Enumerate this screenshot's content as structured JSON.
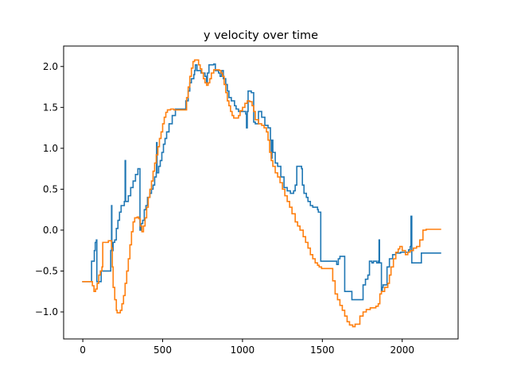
{
  "chart_data": {
    "type": "line",
    "title": "y velocity over time",
    "xlabel": "",
    "ylabel": "",
    "xlim": [
      -120,
      2350
    ],
    "ylim": [
      -1.33,
      2.25
    ],
    "xticks": [
      0,
      500,
      1000,
      1500,
      2000
    ],
    "yticks": [
      -1.0,
      -0.5,
      0.0,
      0.5,
      1.0,
      1.5,
      2.0
    ],
    "xtick_labels": [
      "0",
      "500",
      "1000",
      "1500",
      "2000"
    ],
    "ytick_labels": [
      "−1.0",
      "−0.5",
      "0.0",
      "0.5",
      "1.0",
      "1.5",
      "2.0"
    ],
    "grid": false,
    "legend": "none",
    "step": true,
    "series": [
      {
        "color": "#1f77b4",
        "points": [
          [
            0,
            -0.63
          ],
          [
            40,
            -0.63
          ],
          [
            50,
            -0.63
          ],
          [
            55,
            -0.38
          ],
          [
            70,
            -0.38
          ],
          [
            72,
            -0.25
          ],
          [
            78,
            -0.15
          ],
          [
            85,
            -0.12
          ],
          [
            88,
            -0.63
          ],
          [
            110,
            -0.63
          ],
          [
            115,
            -0.5
          ],
          [
            170,
            -0.5
          ],
          [
            175,
            -0.25
          ],
          [
            180,
            0.3
          ],
          [
            182,
            -0.25
          ],
          [
            190,
            -0.15
          ],
          [
            200,
            -0.12
          ],
          [
            210,
            0.02
          ],
          [
            220,
            0.12
          ],
          [
            230,
            0.22
          ],
          [
            240,
            0.3
          ],
          [
            260,
            0.35
          ],
          [
            265,
            0.85
          ],
          [
            268,
            0.35
          ],
          [
            285,
            0.42
          ],
          [
            300,
            0.52
          ],
          [
            315,
            0.6
          ],
          [
            330,
            0.68
          ],
          [
            345,
            0.75
          ],
          [
            355,
            0.75
          ],
          [
            358,
            0.0
          ],
          [
            365,
            0.08
          ],
          [
            375,
            0.12
          ],
          [
            385,
            0.25
          ],
          [
            395,
            0.3
          ],
          [
            405,
            0.4
          ],
          [
            420,
            0.45
          ],
          [
            430,
            0.5
          ],
          [
            440,
            0.55
          ],
          [
            450,
            0.65
          ],
          [
            460,
            0.7
          ],
          [
            462,
            1.07
          ],
          [
            465,
            0.7
          ],
          [
            475,
            0.78
          ],
          [
            485,
            0.85
          ],
          [
            495,
            0.95
          ],
          [
            505,
            1.05
          ],
          [
            515,
            1.12
          ],
          [
            525,
            1.2
          ],
          [
            540,
            1.3
          ],
          [
            560,
            1.4
          ],
          [
            580,
            1.48
          ],
          [
            640,
            1.48
          ],
          [
            645,
            1.58
          ],
          [
            660,
            1.7
          ],
          [
            670,
            1.8
          ],
          [
            680,
            1.85
          ],
          [
            695,
            1.9
          ],
          [
            700,
            1.95
          ],
          [
            705,
            2.02
          ],
          [
            715,
            1.95
          ],
          [
            740,
            1.92
          ],
          [
            765,
            1.88
          ],
          [
            775,
            1.8
          ],
          [
            780,
            1.92
          ],
          [
            790,
            2.02
          ],
          [
            820,
            2.03
          ],
          [
            830,
            1.95
          ],
          [
            850,
            1.92
          ],
          [
            860,
            1.88
          ],
          [
            870,
            1.95
          ],
          [
            880,
            1.85
          ],
          [
            895,
            1.78
          ],
          [
            905,
            1.7
          ],
          [
            915,
            1.62
          ],
          [
            930,
            1.58
          ],
          [
            950,
            1.52
          ],
          [
            960,
            1.48
          ],
          [
            975,
            1.45
          ],
          [
            1005,
            1.45
          ],
          [
            1020,
            1.42
          ],
          [
            1025,
            1.25
          ],
          [
            1030,
            1.45
          ],
          [
            1035,
            1.7
          ],
          [
            1055,
            1.68
          ],
          [
            1070,
            1.32
          ],
          [
            1080,
            1.3
          ],
          [
            1100,
            1.45
          ],
          [
            1120,
            1.38
          ],
          [
            1140,
            1.28
          ],
          [
            1160,
            1.25
          ],
          [
            1175,
            1.1
          ],
          [
            1180,
            0.88
          ],
          [
            1185,
            1.1
          ],
          [
            1190,
            0.95
          ],
          [
            1205,
            0.82
          ],
          [
            1220,
            0.78
          ],
          [
            1240,
            0.65
          ],
          [
            1260,
            0.52
          ],
          [
            1280,
            0.48
          ],
          [
            1300,
            0.45
          ],
          [
            1320,
            0.48
          ],
          [
            1330,
            0.55
          ],
          [
            1340,
            0.78
          ],
          [
            1370,
            0.75
          ],
          [
            1375,
            0.55
          ],
          [
            1385,
            0.45
          ],
          [
            1400,
            0.4
          ],
          [
            1410,
            0.35
          ],
          [
            1425,
            0.3
          ],
          [
            1440,
            0.28
          ],
          [
            1470,
            0.25
          ],
          [
            1475,
            0.22
          ],
          [
            1490,
            -0.38
          ],
          [
            1580,
            -0.38
          ],
          [
            1590,
            -0.42
          ],
          [
            1600,
            -0.35
          ],
          [
            1610,
            -0.32
          ],
          [
            1630,
            -0.32
          ],
          [
            1640,
            -0.75
          ],
          [
            1680,
            -0.75
          ],
          [
            1685,
            -0.85
          ],
          [
            1750,
            -0.85
          ],
          [
            1755,
            -0.67
          ],
          [
            1770,
            -0.6
          ],
          [
            1785,
            -0.55
          ],
          [
            1795,
            -0.38
          ],
          [
            1810,
            -0.4
          ],
          [
            1820,
            -0.38
          ],
          [
            1840,
            -0.4
          ],
          [
            1850,
            -0.38
          ],
          [
            1855,
            -0.12
          ],
          [
            1858,
            -0.4
          ],
          [
            1870,
            -0.75
          ],
          [
            1875,
            -0.7
          ],
          [
            1880,
            -0.67
          ],
          [
            1900,
            -0.67
          ],
          [
            1905,
            -0.45
          ],
          [
            1920,
            -0.35
          ],
          [
            1940,
            -0.3
          ],
          [
            1960,
            -0.28
          ],
          [
            1990,
            -0.27
          ],
          [
            2040,
            -0.24
          ],
          [
            2050,
            -0.2
          ],
          [
            2055,
            0.17
          ],
          [
            2060,
            -0.4
          ],
          [
            2110,
            -0.4
          ],
          [
            2120,
            -0.28
          ],
          [
            2240,
            -0.28
          ]
        ]
      },
      {
        "color": "#ff7f0e",
        "points": [
          [
            0,
            -0.63
          ],
          [
            50,
            -0.63
          ],
          [
            60,
            -0.68
          ],
          [
            70,
            -0.75
          ],
          [
            80,
            -0.72
          ],
          [
            90,
            -0.65
          ],
          [
            100,
            -0.55
          ],
          [
            110,
            -0.5
          ],
          [
            120,
            -0.45
          ],
          [
            125,
            -0.15
          ],
          [
            155,
            -0.15
          ],
          [
            160,
            -0.13
          ],
          [
            175,
            -0.13
          ],
          [
            180,
            -0.22
          ],
          [
            185,
            -0.45
          ],
          [
            190,
            -0.7
          ],
          [
            200,
            -0.85
          ],
          [
            210,
            -0.98
          ],
          [
            215,
            -1.01
          ],
          [
            225,
            -1.01
          ],
          [
            235,
            -0.98
          ],
          [
            245,
            -0.9
          ],
          [
            255,
            -0.8
          ],
          [
            265,
            -0.65
          ],
          [
            275,
            -0.5
          ],
          [
            285,
            -0.35
          ],
          [
            295,
            -0.18
          ],
          [
            305,
            -0.02
          ],
          [
            315,
            0.1
          ],
          [
            325,
            0.15
          ],
          [
            340,
            0.16
          ],
          [
            350,
            0.14
          ],
          [
            360,
            0.05
          ],
          [
            370,
            -0.02
          ],
          [
            380,
            0.05
          ],
          [
            390,
            0.15
          ],
          [
            400,
            0.28
          ],
          [
            410,
            0.4
          ],
          [
            420,
            0.5
          ],
          [
            430,
            0.6
          ],
          [
            440,
            0.72
          ],
          [
            450,
            0.82
          ],
          [
            460,
            0.92
          ],
          [
            470,
            1.02
          ],
          [
            480,
            1.12
          ],
          [
            490,
            1.2
          ],
          [
            500,
            1.3
          ],
          [
            510,
            1.38
          ],
          [
            520,
            1.44
          ],
          [
            530,
            1.47
          ],
          [
            550,
            1.48
          ],
          [
            570,
            1.47
          ],
          [
            580,
            1.47
          ],
          [
            640,
            1.47
          ],
          [
            650,
            1.62
          ],
          [
            660,
            1.75
          ],
          [
            670,
            1.88
          ],
          [
            680,
            1.98
          ],
          [
            690,
            2.06
          ],
          [
            700,
            2.08
          ],
          [
            715,
            2.08
          ],
          [
            725,
            2.02
          ],
          [
            735,
            1.97
          ],
          [
            745,
            1.92
          ],
          [
            755,
            1.85
          ],
          [
            765,
            1.8
          ],
          [
            775,
            1.77
          ],
          [
            785,
            1.8
          ],
          [
            795,
            1.85
          ],
          [
            805,
            1.92
          ],
          [
            820,
            1.96
          ],
          [
            840,
            1.96
          ],
          [
            855,
            1.95
          ],
          [
            865,
            1.92
          ],
          [
            875,
            1.88
          ],
          [
            885,
            1.78
          ],
          [
            895,
            1.68
          ],
          [
            905,
            1.58
          ],
          [
            915,
            1.52
          ],
          [
            925,
            1.45
          ],
          [
            935,
            1.4
          ],
          [
            945,
            1.37
          ],
          [
            965,
            1.37
          ],
          [
            975,
            1.4
          ],
          [
            985,
            1.46
          ],
          [
            1000,
            1.5
          ],
          [
            1015,
            1.55
          ],
          [
            1030,
            1.58
          ],
          [
            1045,
            1.57
          ],
          [
            1060,
            1.52
          ],
          [
            1070,
            1.45
          ],
          [
            1080,
            1.35
          ],
          [
            1100,
            1.3
          ],
          [
            1120,
            1.28
          ],
          [
            1135,
            1.25
          ],
          [
            1150,
            1.2
          ],
          [
            1160,
            1.1
          ],
          [
            1170,
            0.95
          ],
          [
            1180,
            0.85
          ],
          [
            1190,
            0.78
          ],
          [
            1205,
            0.7
          ],
          [
            1220,
            0.65
          ],
          [
            1235,
            0.58
          ],
          [
            1250,
            0.5
          ],
          [
            1265,
            0.42
          ],
          [
            1280,
            0.35
          ],
          [
            1295,
            0.28
          ],
          [
            1310,
            0.2
          ],
          [
            1330,
            0.1
          ],
          [
            1345,
            0.05
          ],
          [
            1360,
            0.0
          ],
          [
            1380,
            -0.08
          ],
          [
            1395,
            -0.15
          ],
          [
            1410,
            -0.22
          ],
          [
            1425,
            -0.3
          ],
          [
            1440,
            -0.35
          ],
          [
            1455,
            -0.4
          ],
          [
            1470,
            -0.43
          ],
          [
            1480,
            -0.45
          ],
          [
            1495,
            -0.47
          ],
          [
            1555,
            -0.47
          ],
          [
            1565,
            -0.62
          ],
          [
            1580,
            -0.78
          ],
          [
            1595,
            -0.85
          ],
          [
            1610,
            -0.92
          ],
          [
            1625,
            -0.98
          ],
          [
            1640,
            -1.05
          ],
          [
            1655,
            -1.12
          ],
          [
            1670,
            -1.16
          ],
          [
            1690,
            -1.18
          ],
          [
            1705,
            -1.15
          ],
          [
            1720,
            -1.15
          ],
          [
            1735,
            -1.05
          ],
          [
            1755,
            -1.0
          ],
          [
            1775,
            -0.97
          ],
          [
            1800,
            -0.95
          ],
          [
            1835,
            -0.93
          ],
          [
            1850,
            -0.9
          ],
          [
            1860,
            -0.78
          ],
          [
            1870,
            -0.75
          ],
          [
            1890,
            -0.7
          ],
          [
            1910,
            -0.65
          ],
          [
            1920,
            -0.55
          ],
          [
            1930,
            -0.45
          ],
          [
            1945,
            -0.35
          ],
          [
            1960,
            -0.27
          ],
          [
            1975,
            -0.23
          ],
          [
            1985,
            -0.2
          ],
          [
            2000,
            -0.25
          ],
          [
            2020,
            -0.3
          ],
          [
            2035,
            -0.27
          ],
          [
            2050,
            -0.25
          ],
          [
            2070,
            -0.22
          ],
          [
            2090,
            -0.2
          ],
          [
            2110,
            -0.12
          ],
          [
            2130,
            0.0
          ],
          [
            2150,
            0.01
          ],
          [
            2240,
            0.01
          ]
        ]
      }
    ]
  }
}
